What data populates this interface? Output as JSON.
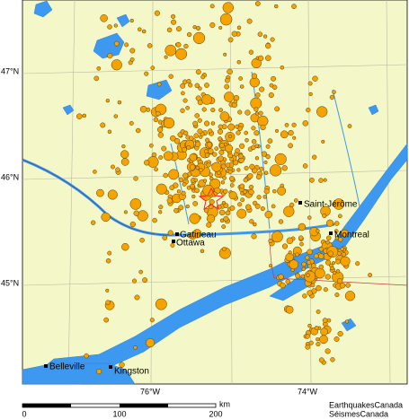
{
  "map": {
    "lat_labels": [
      "47°N",
      "46°N",
      "45°N"
    ],
    "lon_labels": [
      "76°W",
      "74°W"
    ],
    "cities": [
      {
        "label": "Gatineau"
      },
      {
        "label": "Ottawa"
      },
      {
        "label": "Saint-Jérôme"
      },
      {
        "label": "Montreal"
      },
      {
        "label": "Belleville"
      },
      {
        "label": "Kingston"
      }
    ],
    "scale": {
      "labels": [
        "0",
        "100",
        "200"
      ],
      "unit": "km"
    },
    "credits": [
      "EarthquakesCanada",
      "SéismesCanada"
    ]
  }
}
